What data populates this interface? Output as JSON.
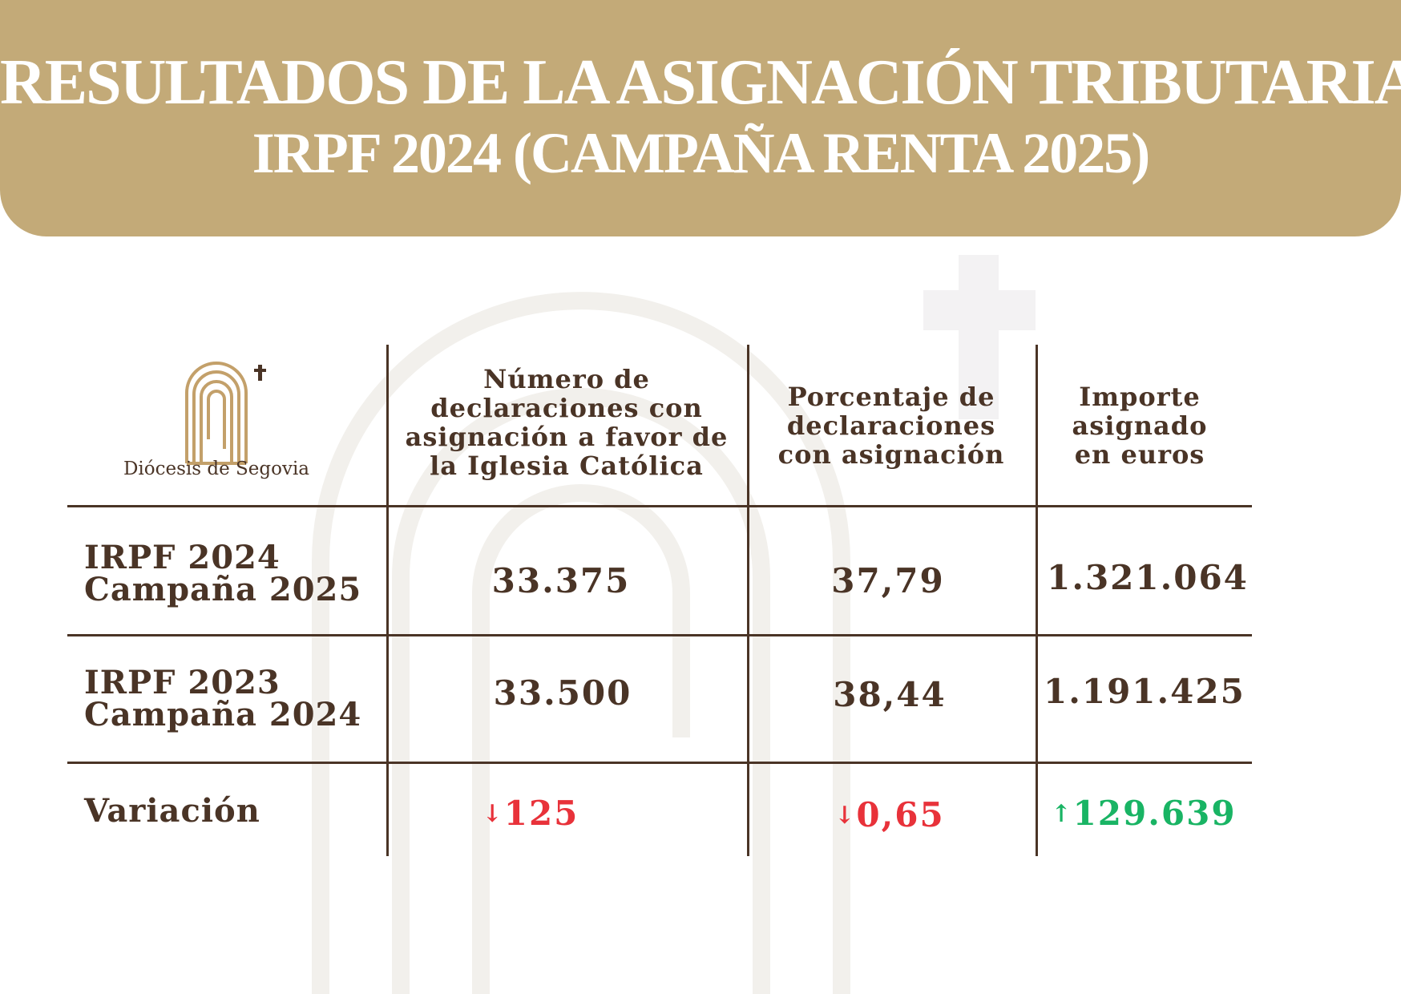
{
  "header": {
    "title_line1": "RESULTADOS DE LA ASIGNACIÓN TRIBUTARIA",
    "title_line2": "IRPF 2024 (CAMPAÑA RENTA 2025)"
  },
  "logo": {
    "name": "Diócesis de Segovia",
    "icon": "arch-cross-icon"
  },
  "table": {
    "columns": [
      [
        "Número de",
        "declaraciones con",
        "asignación a favor de",
        "la Iglesia Católica"
      ],
      [
        "Porcentaje de",
        "declaraciones",
        "con asignación"
      ],
      [
        "Importe",
        "asignado",
        " en euros"
      ]
    ],
    "rows": [
      {
        "label": [
          "IRPF 2024",
          "Campaña 2025"
        ],
        "values": [
          "33.375",
          "37,79",
          "1.321.064"
        ]
      },
      {
        "label": [
          "IRPF 2023",
          "Campaña 2024"
        ],
        "values": [
          "33.500",
          "38,44",
          "1.191.425"
        ]
      }
    ],
    "variation": {
      "label": "Variación",
      "items": [
        {
          "arrow": "↓",
          "value": "125",
          "direction": "down"
        },
        {
          "arrow": "↓",
          "value": "0,65",
          "direction": "down"
        },
        {
          "arrow": "↑",
          "value": "129.639",
          "direction": "up"
        }
      ]
    }
  },
  "colors": {
    "header": "#c3aa78",
    "text": "#4a3426",
    "down": "#e8323a",
    "up": "#19b464"
  }
}
